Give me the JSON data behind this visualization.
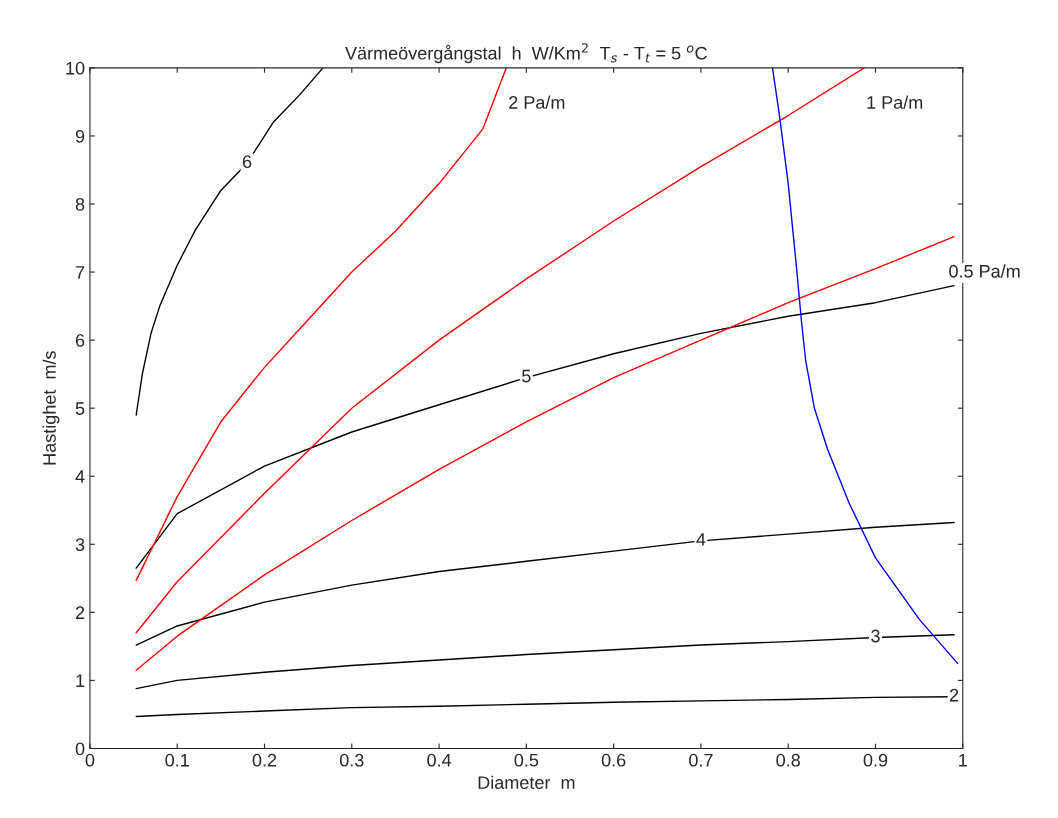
{
  "chart_data": {
    "type": "line",
    "title": "Värmeövergångstal  h  W/Km$^{2}$  T$_{s}$ - T$_{t}$ = 5 $^{o}$C",
    "xlabel": "Diameter  m",
    "ylabel": "Hastighet  m/s",
    "xlim": [
      0,
      1
    ],
    "ylim": [
      0,
      10
    ],
    "xticks": [
      0,
      0.1,
      0.2,
      0.3,
      0.4,
      0.5,
      0.6,
      0.7,
      0.8,
      0.9,
      1
    ],
    "yticks": [
      0,
      1,
      2,
      3,
      4,
      5,
      6,
      7,
      8,
      9,
      10
    ],
    "grid": false,
    "legend": false,
    "marker": "none",
    "line_style": "solid",
    "series": [
      {
        "color": "#000000",
        "x": [
          0.053,
          0.06,
          0.07,
          0.08,
          0.1,
          0.12,
          0.15,
          0.18,
          0.21,
          0.24,
          0.267
        ],
        "values": [
          4.9,
          5.5,
          6.1,
          6.5,
          7.1,
          7.6,
          8.2,
          8.6,
          9.2,
          9.6,
          10
        ]
      },
      {
        "color": "#000000",
        "x": [
          0.053,
          0.1,
          0.2,
          0.3,
          0.4,
          0.5,
          0.6,
          0.7,
          0.8,
          0.9,
          0.99
        ],
        "values": [
          2.65,
          3.45,
          4.15,
          4.65,
          5.05,
          5.45,
          5.8,
          6.1,
          6.35,
          6.55,
          6.8
        ]
      },
      {
        "color": "#000000",
        "x": [
          0.053,
          0.1,
          0.2,
          0.3,
          0.4,
          0.5,
          0.6,
          0.7,
          0.8,
          0.9,
          0.99
        ],
        "values": [
          1.52,
          1.8,
          2.15,
          2.4,
          2.6,
          2.75,
          2.9,
          3.05,
          3.15,
          3.25,
          3.32
        ]
      },
      {
        "color": "#000000",
        "x": [
          0.053,
          0.1,
          0.2,
          0.3,
          0.4,
          0.5,
          0.6,
          0.7,
          0.8,
          0.9,
          0.99
        ],
        "values": [
          0.88,
          1.0,
          1.12,
          1.22,
          1.3,
          1.38,
          1.45,
          1.52,
          1.57,
          1.63,
          1.67
        ]
      },
      {
        "color": "#000000",
        "x": [
          0.053,
          0.1,
          0.2,
          0.3,
          0.4,
          0.5,
          0.6,
          0.7,
          0.8,
          0.9,
          0.99
        ],
        "values": [
          0.47,
          0.5,
          0.55,
          0.6,
          0.62,
          0.65,
          0.68,
          0.7,
          0.72,
          0.75,
          0.76
        ]
      },
      {
        "name": "2 Pa/m",
        "color": "#ff0000",
        "x": [
          0.053,
          0.1,
          0.15,
          0.2,
          0.25,
          0.3,
          0.35,
          0.4,
          0.45,
          0.477
        ],
        "values": [
          2.47,
          3.7,
          4.8,
          5.6,
          6.3,
          7.0,
          7.6,
          8.3,
          9.1,
          10
        ]
      },
      {
        "name": "1 Pa/m",
        "color": "#ff0000",
        "x": [
          0.053,
          0.1,
          0.2,
          0.3,
          0.4,
          0.5,
          0.6,
          0.7,
          0.8,
          0.887
        ],
        "values": [
          1.7,
          2.45,
          3.75,
          5.0,
          6.0,
          6.9,
          7.75,
          8.55,
          9.3,
          10
        ]
      },
      {
        "name": "0.5 Pa/m",
        "color": "#ff0000",
        "x": [
          0.053,
          0.1,
          0.2,
          0.3,
          0.4,
          0.5,
          0.6,
          0.7,
          0.8,
          0.9,
          0.99
        ],
        "values": [
          1.15,
          1.65,
          2.55,
          3.35,
          4.1,
          4.8,
          5.45,
          6.0,
          6.55,
          7.05,
          7.52
        ]
      },
      {
        "color": "#0000ff",
        "x": [
          0.782,
          0.79,
          0.8,
          0.81,
          0.815,
          0.82,
          0.83,
          0.845,
          0.87,
          0.9,
          0.95,
          0.994
        ],
        "values": [
          10,
          9.3,
          8.3,
          7.0,
          6.3,
          5.7,
          5.0,
          4.4,
          3.6,
          2.8,
          1.9,
          1.25
        ]
      }
    ],
    "annotations": [
      {
        "text": "6",
        "x": 0.18,
        "y": 8.6
      },
      {
        "text": "5",
        "x": 0.5,
        "y": 5.45
      },
      {
        "text": "4",
        "x": 0.7,
        "y": 3.05
      },
      {
        "text": "3",
        "x": 0.9,
        "y": 1.63
      },
      {
        "text": "2",
        "x": 0.99,
        "y": 0.76
      }
    ]
  }
}
